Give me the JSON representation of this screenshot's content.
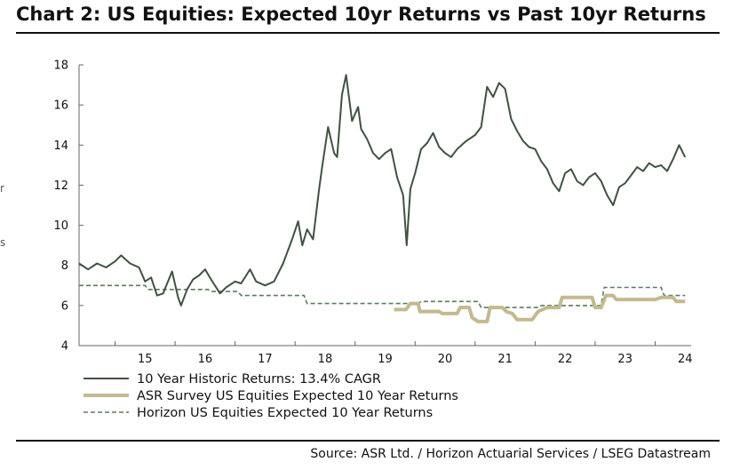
{
  "title": "Chart 2: US Equities: Expected 10yr Returns vs Past 10yr Returns",
  "source": "Source: ASR Ltd. / Horizon Actuarial Services / LSEG Datastream",
  "colors": {
    "historic": "#3f5240",
    "asr": "#c4b98f",
    "horizon": "#5f7a5f",
    "axis": "#666666"
  },
  "chart_data": {
    "type": "line",
    "xlabel": "",
    "ylabel": "",
    "xlim": [
      2014.4,
      2024.6
    ],
    "ylim": [
      4,
      18
    ],
    "yticks": [
      4,
      6,
      8,
      10,
      12,
      14,
      16,
      18
    ],
    "xticks": [
      {
        "label": "15",
        "pos": 2015.0
      },
      {
        "label": "16",
        "pos": 2016.0
      },
      {
        "label": "17",
        "pos": 2017.0
      },
      {
        "label": "18",
        "pos": 2018.0
      },
      {
        "label": "19",
        "pos": 2019.0
      },
      {
        "label": "20",
        "pos": 2020.0
      },
      {
        "label": "21",
        "pos": 2021.0
      },
      {
        "label": "22",
        "pos": 2022.0
      },
      {
        "label": "23",
        "pos": 2023.0
      },
      {
        "label": "24",
        "pos": 2024.0
      }
    ],
    "grid": false,
    "legend_position": "bottom-left",
    "series": [
      {
        "name": "10 Year Historic Returns: 13.4% CAGR",
        "style": "solid",
        "points": [
          [
            2014.4,
            8.1
          ],
          [
            2014.55,
            7.8
          ],
          [
            2014.7,
            8.1
          ],
          [
            2014.85,
            7.9
          ],
          [
            2015.0,
            8.2
          ],
          [
            2015.1,
            8.5
          ],
          [
            2015.25,
            8.1
          ],
          [
            2015.4,
            7.9
          ],
          [
            2015.5,
            7.2
          ],
          [
            2015.6,
            7.4
          ],
          [
            2015.7,
            6.5
          ],
          [
            2015.8,
            6.6
          ],
          [
            2015.95,
            7.7
          ],
          [
            2016.05,
            6.4
          ],
          [
            2016.1,
            6.0
          ],
          [
            2016.2,
            6.8
          ],
          [
            2016.3,
            7.3
          ],
          [
            2016.4,
            7.5
          ],
          [
            2016.5,
            7.8
          ],
          [
            2016.6,
            7.3
          ],
          [
            2016.75,
            6.6
          ],
          [
            2016.85,
            6.9
          ],
          [
            2017.0,
            7.2
          ],
          [
            2017.1,
            7.1
          ],
          [
            2017.25,
            7.8
          ],
          [
            2017.35,
            7.2
          ],
          [
            2017.5,
            7.0
          ],
          [
            2017.65,
            7.2
          ],
          [
            2017.8,
            8.1
          ],
          [
            2017.95,
            9.3
          ],
          [
            2018.05,
            10.2
          ],
          [
            2018.12,
            9.0
          ],
          [
            2018.2,
            9.8
          ],
          [
            2018.3,
            9.3
          ],
          [
            2018.4,
            11.8
          ],
          [
            2018.45,
            12.9
          ],
          [
            2018.55,
            14.9
          ],
          [
            2018.65,
            13.6
          ],
          [
            2018.7,
            13.4
          ],
          [
            2018.78,
            16.5
          ],
          [
            2018.85,
            17.5
          ],
          [
            2018.95,
            15.2
          ],
          [
            2019.05,
            15.9
          ],
          [
            2019.1,
            14.8
          ],
          [
            2019.2,
            14.3
          ],
          [
            2019.3,
            13.6
          ],
          [
            2019.4,
            13.3
          ],
          [
            2019.5,
            13.6
          ],
          [
            2019.6,
            13.8
          ],
          [
            2019.7,
            12.4
          ],
          [
            2019.8,
            11.5
          ],
          [
            2019.86,
            9.0
          ],
          [
            2019.92,
            11.8
          ],
          [
            2020.0,
            12.6
          ],
          [
            2020.1,
            13.8
          ],
          [
            2020.2,
            14.1
          ],
          [
            2020.3,
            14.6
          ],
          [
            2020.4,
            13.9
          ],
          [
            2020.5,
            13.6
          ],
          [
            2020.6,
            13.4
          ],
          [
            2020.7,
            13.8
          ],
          [
            2020.85,
            14.2
          ],
          [
            2021.0,
            14.5
          ],
          [
            2021.1,
            14.9
          ],
          [
            2021.2,
            16.9
          ],
          [
            2021.3,
            16.4
          ],
          [
            2021.4,
            17.1
          ],
          [
            2021.5,
            16.8
          ],
          [
            2021.6,
            15.3
          ],
          [
            2021.7,
            14.7
          ],
          [
            2021.8,
            14.2
          ],
          [
            2021.9,
            13.9
          ],
          [
            2022.0,
            13.8
          ],
          [
            2022.1,
            13.2
          ],
          [
            2022.2,
            12.8
          ],
          [
            2022.3,
            12.1
          ],
          [
            2022.4,
            11.7
          ],
          [
            2022.5,
            12.6
          ],
          [
            2022.6,
            12.8
          ],
          [
            2022.7,
            12.2
          ],
          [
            2022.8,
            12.0
          ],
          [
            2022.9,
            12.4
          ],
          [
            2023.0,
            12.6
          ],
          [
            2023.1,
            12.2
          ],
          [
            2023.2,
            11.5
          ],
          [
            2023.3,
            11.0
          ],
          [
            2023.4,
            11.9
          ],
          [
            2023.5,
            12.1
          ],
          [
            2023.6,
            12.5
          ],
          [
            2023.7,
            12.9
          ],
          [
            2023.8,
            12.7
          ],
          [
            2023.9,
            13.1
          ],
          [
            2024.0,
            12.9
          ],
          [
            2024.1,
            13.0
          ],
          [
            2024.2,
            12.7
          ],
          [
            2024.3,
            13.3
          ],
          [
            2024.4,
            14.0
          ],
          [
            2024.5,
            13.4
          ]
        ]
      },
      {
        "name": "ASR Survey US Equities Expected 10 Year Returns",
        "style": "thick",
        "points": [
          [
            2019.65,
            5.8
          ],
          [
            2019.85,
            5.8
          ],
          [
            2019.92,
            6.1
          ],
          [
            2020.05,
            6.1
          ],
          [
            2020.08,
            5.7
          ],
          [
            2020.4,
            5.7
          ],
          [
            2020.45,
            5.6
          ],
          [
            2020.7,
            5.6
          ],
          [
            2020.75,
            5.9
          ],
          [
            2020.9,
            5.9
          ],
          [
            2020.95,
            5.4
          ],
          [
            2021.05,
            5.2
          ],
          [
            2021.2,
            5.2
          ],
          [
            2021.25,
            5.9
          ],
          [
            2021.45,
            5.9
          ],
          [
            2021.52,
            5.7
          ],
          [
            2021.62,
            5.6
          ],
          [
            2021.7,
            5.3
          ],
          [
            2021.95,
            5.3
          ],
          [
            2022.05,
            5.7
          ],
          [
            2022.2,
            5.9
          ],
          [
            2022.4,
            5.9
          ],
          [
            2022.45,
            6.4
          ],
          [
            2022.95,
            6.4
          ],
          [
            2023.0,
            5.9
          ],
          [
            2023.1,
            5.9
          ],
          [
            2023.18,
            6.5
          ],
          [
            2023.3,
            6.5
          ],
          [
            2023.35,
            6.3
          ],
          [
            2023.6,
            6.3
          ],
          [
            2023.65,
            6.3
          ],
          [
            2024.0,
            6.3
          ],
          [
            2024.1,
            6.4
          ],
          [
            2024.3,
            6.4
          ],
          [
            2024.35,
            6.2
          ],
          [
            2024.5,
            6.2
          ]
        ]
      },
      {
        "name": "Horizon US Equities Expected 10 Year Returns",
        "style": "dashed",
        "points": [
          [
            2014.4,
            7.0
          ],
          [
            2015.5,
            7.0
          ],
          [
            2015.55,
            6.8
          ],
          [
            2016.55,
            6.8
          ],
          [
            2016.6,
            6.7
          ],
          [
            2017.05,
            6.7
          ],
          [
            2017.1,
            6.5
          ],
          [
            2018.15,
            6.5
          ],
          [
            2018.2,
            6.1
          ],
          [
            2020.05,
            6.1
          ],
          [
            2020.1,
            6.2
          ],
          [
            2021.05,
            6.2
          ],
          [
            2021.1,
            5.9
          ],
          [
            2022.05,
            5.9
          ],
          [
            2022.1,
            6.0
          ],
          [
            2023.1,
            6.0
          ],
          [
            2023.15,
            6.9
          ],
          [
            2024.1,
            6.9
          ],
          [
            2024.15,
            6.5
          ],
          [
            2024.5,
            6.5
          ]
        ]
      }
    ]
  }
}
